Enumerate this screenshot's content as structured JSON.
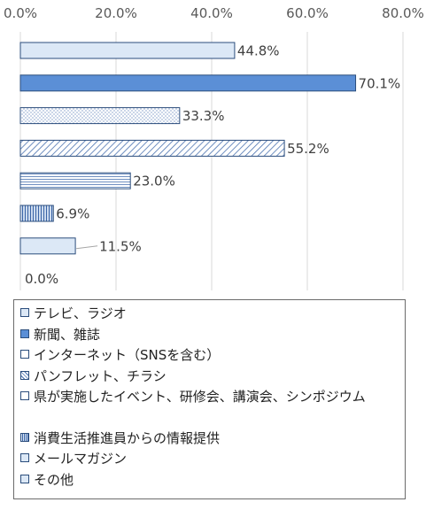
{
  "chart_data": {
    "type": "bar",
    "orientation": "horizontal",
    "x_axis_position": "top",
    "xlim": [
      0,
      80
    ],
    "x_ticks": [
      "0.0%",
      "20.0%",
      "40.0%",
      "60.0%",
      "80.0%"
    ],
    "grid": "vertical",
    "legend_position": "bottom",
    "categories": [
      "テレビ、ラジオ",
      "新聞、雑誌",
      "インターネット（SNSを含む）",
      "パンフレット、チラシ",
      "県が実施したイベント、研修会、講演会、シンポジウム",
      "消費生活推進員からの情報提供",
      "メールマガジン",
      "その他"
    ],
    "values": [
      44.8,
      70.1,
      33.3,
      55.2,
      23.0,
      6.9,
      11.5,
      0.0
    ],
    "value_labels": [
      "44.8%",
      "70.1%",
      "33.3%",
      "55.2%",
      "23.0%",
      "6.9%",
      "11.5%",
      "0.0%"
    ],
    "colors": {
      "gridline": "#d9d9d9",
      "bar_stroke": "#2b4d7c",
      "solid_fill": "#5b8fd6",
      "light_fill": "#dce8f6",
      "pattern_line": "#4a72b0"
    }
  }
}
